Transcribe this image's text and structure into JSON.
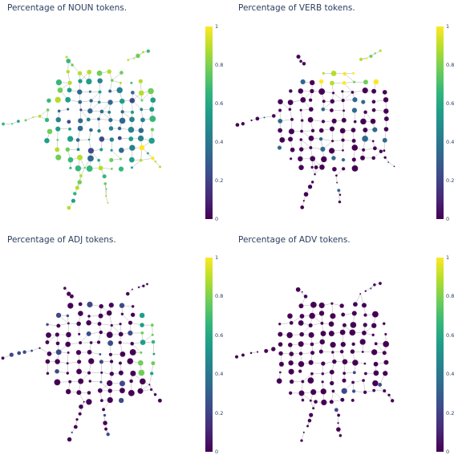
{
  "panels": [
    {
      "title": "Percentage of NOUN tokens.",
      "colorbar_ticks": [
        "0",
        "0.2",
        "0.4",
        "0.6",
        "0.8",
        "1"
      ]
    },
    {
      "title": "Percentage of VERB tokens.",
      "colorbar_ticks": [
        "0",
        "0.2",
        "0.4",
        "0.6",
        "0.8",
        "1"
      ]
    },
    {
      "title": "Percentage of ADJ tokens.",
      "colorbar_ticks": [
        "0",
        "0.2",
        "0.4",
        "0.6",
        "0.8",
        "1"
      ]
    },
    {
      "title": "Percentage of ADV tokens.",
      "colorbar_ticks": [
        "0",
        "0.2",
        "0.4",
        "0.6",
        "0.8",
        "1"
      ]
    }
  ],
  "colorscale": "viridis",
  "colors": {
    "title": "#2a3f5f",
    "edge": "#9a9a9a",
    "low": "#440154",
    "high": "#fde725"
  }
}
